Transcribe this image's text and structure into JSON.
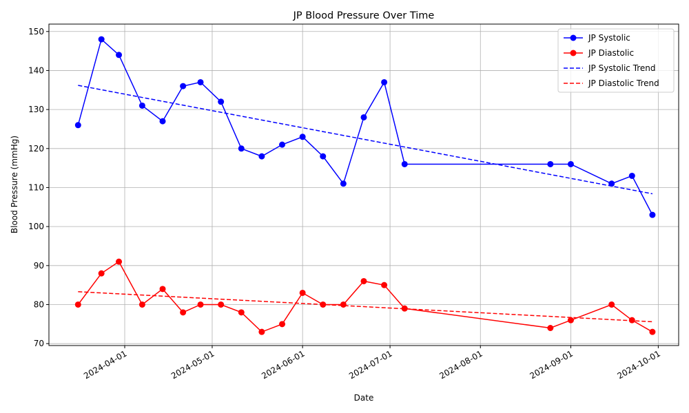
{
  "chart_data": {
    "type": "line",
    "title": "JP Blood Pressure Over Time",
    "xlabel": "Date",
    "ylabel": "Blood Pressure (mmHg)",
    "x": [
      "2024-03-16",
      "2024-03-24",
      "2024-03-30",
      "2024-04-07",
      "2024-04-14",
      "2024-04-21",
      "2024-04-27",
      "2024-05-04",
      "2024-05-11",
      "2024-05-18",
      "2024-05-25",
      "2024-06-01",
      "2024-06-08",
      "2024-06-15",
      "2024-06-22",
      "2024-06-29",
      "2024-07-06",
      "2024-08-25",
      "2024-09-01",
      "2024-09-15",
      "2024-09-22",
      "2024-09-29"
    ],
    "series": [
      {
        "name": "JP Systolic",
        "color": "#0000ff",
        "style": "solid",
        "marker": true,
        "values": [
          126,
          148,
          144,
          131,
          127,
          136,
          137,
          132,
          120,
          118,
          121,
          123,
          118,
          111,
          128,
          137,
          116,
          116,
          116,
          111,
          113,
          103
        ]
      },
      {
        "name": "JP Diastolic",
        "color": "#ff0000",
        "style": "solid",
        "marker": true,
        "values": [
          80,
          88,
          91,
          80,
          84,
          78,
          80,
          80,
          78,
          73,
          75,
          83,
          80,
          80,
          86,
          85,
          79,
          74,
          76,
          80,
          76,
          73
        ]
      },
      {
        "name": "JP Systolic Trend",
        "color": "#0000ff",
        "style": "dashed",
        "marker": false,
        "x": [
          "2024-03-16",
          "2024-09-29"
        ],
        "values": [
          136.2,
          108.4
        ]
      },
      {
        "name": "JP Diastolic Trend",
        "color": "#ff0000",
        "style": "dashed",
        "marker": false,
        "x": [
          "2024-03-16",
          "2024-09-29"
        ],
        "values": [
          83.3,
          75.6
        ]
      }
    ],
    "xlim": [
      "2024-03-06",
      "2024-10-08"
    ],
    "xticks": [
      "2024-04-01",
      "2024-05-01",
      "2024-06-01",
      "2024-07-01",
      "2024-08-01",
      "2024-09-01",
      "2024-10-01"
    ],
    "ylim": [
      69.5,
      151.9
    ],
    "yticks": [
      70,
      80,
      90,
      100,
      110,
      120,
      130,
      140,
      150
    ],
    "grid": true,
    "legend": "upper right"
  }
}
